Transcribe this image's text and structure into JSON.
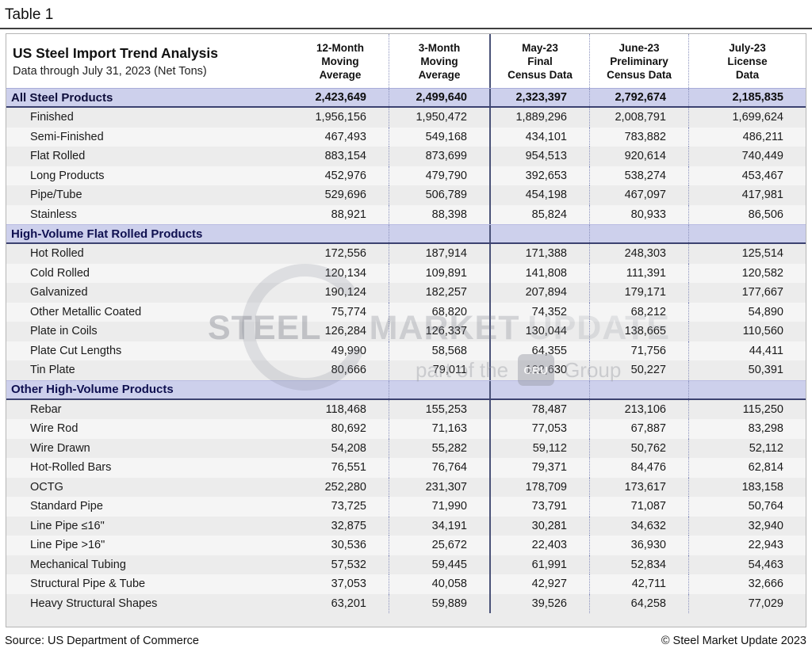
{
  "page_label": "Table 1",
  "table": {
    "title": "US Steel Import Trend Analysis",
    "subtitle": "Data through July 31, 2023 (Net Tons)",
    "columns": [
      "12-Month\nMoving\nAverage",
      "3-Month\nMoving\nAverage",
      "May-23\nFinal\nCensus Data",
      "June-23\nPreliminary\nCensus Data",
      "July-23\nLicense\nData"
    ],
    "total_row": {
      "label": "All Steel Products",
      "values": [
        "2,423,649",
        "2,499,640",
        "2,323,397",
        "2,792,674",
        "2,185,835"
      ]
    },
    "sections": [
      {
        "header": null,
        "rows": [
          {
            "label": "Finished",
            "values": [
              "1,956,156",
              "1,950,472",
              "1,889,296",
              "2,008,791",
              "1,699,624"
            ]
          },
          {
            "label": "Semi-Finished",
            "values": [
              "467,493",
              "549,168",
              "434,101",
              "783,882",
              "486,211"
            ]
          },
          {
            "label": "Flat Rolled",
            "values": [
              "883,154",
              "873,699",
              "954,513",
              "920,614",
              "740,449"
            ]
          },
          {
            "label": "Long Products",
            "values": [
              "452,976",
              "479,790",
              "392,653",
              "538,274",
              "453,467"
            ]
          },
          {
            "label": "Pipe/Tube",
            "values": [
              "529,696",
              "506,789",
              "454,198",
              "467,097",
              "417,981"
            ]
          },
          {
            "label": "Stainless",
            "values": [
              "88,921",
              "88,398",
              "85,824",
              "80,933",
              "86,506"
            ]
          }
        ]
      },
      {
        "header": "High-Volume Flat Rolled Products",
        "rows": [
          {
            "label": "Hot Rolled",
            "values": [
              "172,556",
              "187,914",
              "171,388",
              "248,303",
              "125,514"
            ]
          },
          {
            "label": "Cold Rolled",
            "values": [
              "120,134",
              "109,891",
              "141,808",
              "111,391",
              "120,582"
            ]
          },
          {
            "label": "Galvanized",
            "values": [
              "190,124",
              "182,257",
              "207,894",
              "179,171",
              "177,667"
            ]
          },
          {
            "label": "Other Metallic Coated",
            "values": [
              "75,774",
              "68,820",
              "74,352",
              "68,212",
              "54,890"
            ]
          },
          {
            "label": "Plate in Coils",
            "values": [
              "126,284",
              "126,337",
              "130,044",
              "138,665",
              "110,560"
            ]
          },
          {
            "label": "Plate Cut Lengths",
            "values": [
              "49,990",
              "58,568",
              "64,355",
              "71,756",
              "44,411"
            ]
          },
          {
            "label": "Tin Plate",
            "values": [
              "80,666",
              "79,011",
              "102,630",
              "50,227",
              "50,391"
            ]
          }
        ]
      },
      {
        "header": "Other High-Volume Products",
        "rows": [
          {
            "label": "Rebar",
            "values": [
              "118,468",
              "155,253",
              "78,487",
              "213,106",
              "115,250"
            ]
          },
          {
            "label": "Wire Rod",
            "values": [
              "80,692",
              "71,163",
              "77,053",
              "67,887",
              "83,298"
            ]
          },
          {
            "label": "Wire Drawn",
            "values": [
              "54,208",
              "55,282",
              "59,112",
              "50,762",
              "52,112"
            ]
          },
          {
            "label": "Hot-Rolled Bars",
            "values": [
              "76,551",
              "76,764",
              "79,371",
              "84,476",
              "62,814"
            ]
          },
          {
            "label": "OCTG",
            "values": [
              "252,280",
              "231,307",
              "178,709",
              "173,617",
              "183,158"
            ]
          },
          {
            "label": "Standard Pipe",
            "values": [
              "73,725",
              "71,990",
              "73,791",
              "71,087",
              "50,764"
            ]
          },
          {
            "label": "Line Pipe ≤16\"",
            "values": [
              "32,875",
              "34,191",
              "30,281",
              "34,632",
              "32,940"
            ]
          },
          {
            "label": "Line Pipe >16\"",
            "values": [
              "30,536",
              "25,672",
              "22,403",
              "36,930",
              "22,943"
            ]
          },
          {
            "label": "Mechanical Tubing",
            "values": [
              "57,532",
              "59,445",
              "61,991",
              "52,834",
              "54,463"
            ]
          },
          {
            "label": "Structural Pipe & Tube",
            "values": [
              "37,053",
              "40,058",
              "42,927",
              "42,711",
              "32,666"
            ]
          },
          {
            "label": "Heavy Structural Shapes",
            "values": [
              "63,201",
              "59,889",
              "39,526",
              "64,258",
              "77,029"
            ]
          }
        ]
      }
    ]
  },
  "watermark": {
    "word1": "STEEL",
    "word2": "MARKET",
    "word3": "UPDATE",
    "tagline_prefix": "part of the",
    "logo_text": "CRU",
    "tagline_suffix": "Group"
  },
  "footer": {
    "source": "Source: US Department of Commerce",
    "copyright": "© Steel Market Update 2023"
  },
  "colors": {
    "lavender_band": "#cdd0ec",
    "stripe_dark": "#ececec",
    "stripe_light": "#f5f5f5",
    "divider_dotted": "#8a91bd",
    "divider_solid": "#4a5278",
    "section_border": "#3c4270",
    "outer_border": "#b5b5b5"
  }
}
